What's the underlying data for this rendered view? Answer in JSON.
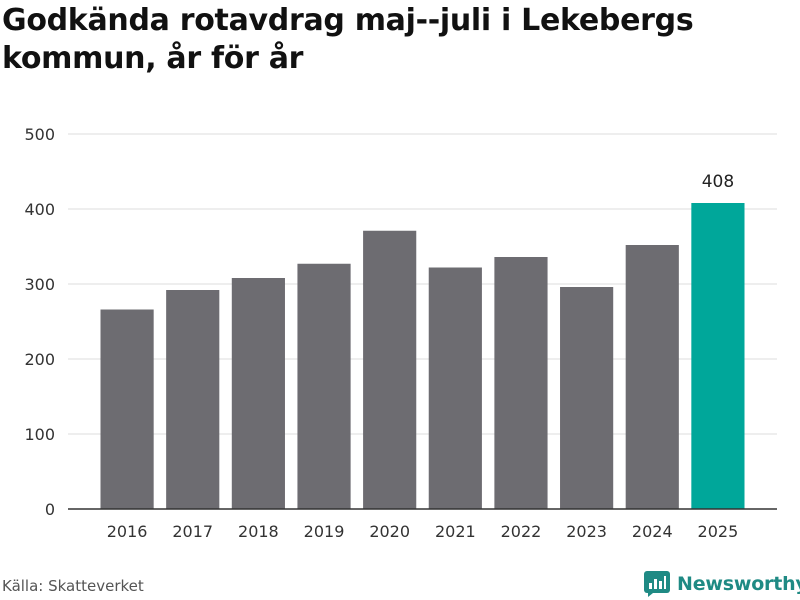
{
  "title": "Godkända rotavdrag maj--juli i Lekebergs kommun, år för år",
  "source": "Källa: Skatteverket",
  "brand": {
    "name": "Newsworthy",
    "color": "#1f8a84",
    "icon": "newsworthy-logo-icon"
  },
  "colors": {
    "bar": "#6d6c71",
    "highlight": "#00a79a",
    "grid": "#dddddd",
    "axis": "#333333"
  },
  "chart_data": {
    "type": "bar",
    "title": "Godkända rotavdrag maj--juli i Lekebergs kommun, år för år",
    "xlabel": "",
    "ylabel": "",
    "categories": [
      "2016",
      "2017",
      "2018",
      "2019",
      "2020",
      "2021",
      "2022",
      "2023",
      "2024",
      "2025"
    ],
    "values": [
      266,
      292,
      308,
      327,
      371,
      322,
      336,
      296,
      352,
      408
    ],
    "ylim": [
      0,
      500
    ],
    "yticks": [
      0,
      100,
      200,
      300,
      400,
      500
    ],
    "highlight_index": 9,
    "data_labels": [
      {
        "index": 9,
        "text": "408"
      }
    ],
    "grid": true,
    "legend": "none"
  }
}
